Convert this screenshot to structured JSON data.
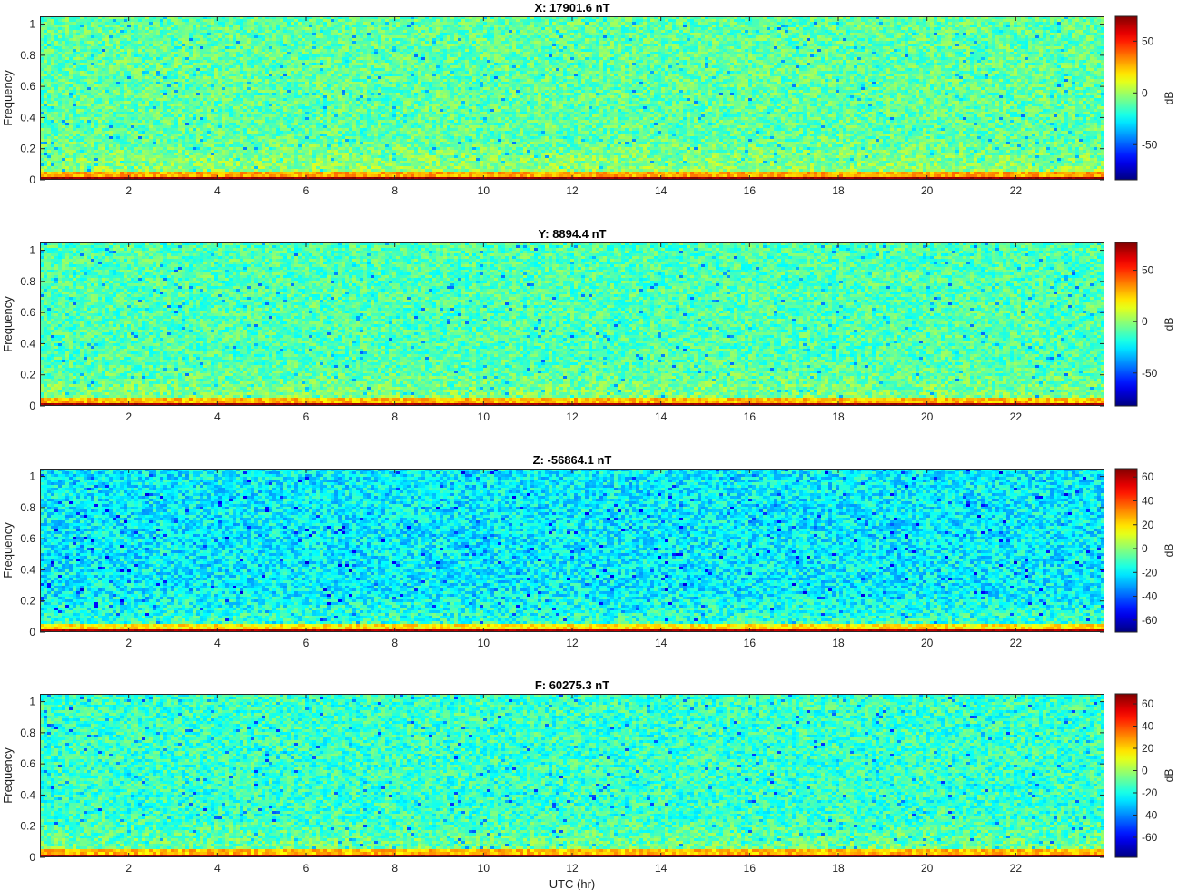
{
  "chart_data": [
    {
      "type": "heatmap",
      "title": "X: 17901.6 nT",
      "ylabel": "Frequency",
      "xlabel": "",
      "xlim": [
        0,
        24
      ],
      "ylim": [
        0,
        1.05
      ],
      "xticks": [
        2,
        4,
        6,
        8,
        10,
        12,
        14,
        16,
        18,
        20,
        22
      ],
      "yticks": [
        0,
        0.2,
        0.4,
        0.6,
        0.8,
        1
      ],
      "colorbar": {
        "label": "dB",
        "range": [
          -84,
          74
        ],
        "ticks": [
          -50,
          0,
          50
        ]
      },
      "colormap": "jet",
      "noise_floor_db": -10,
      "low_frequency_band_db": 74
    },
    {
      "type": "heatmap",
      "title": "Y: 8894.4 nT",
      "ylabel": "Frequency",
      "xlabel": "",
      "xlim": [
        0,
        24
      ],
      "ylim": [
        0,
        1.05
      ],
      "xticks": [
        2,
        4,
        6,
        8,
        10,
        12,
        14,
        16,
        18,
        20,
        22
      ],
      "yticks": [
        0,
        0.2,
        0.4,
        0.6,
        0.8,
        1
      ],
      "colorbar": {
        "label": "dB",
        "range": [
          -82,
          77
        ],
        "ticks": [
          -50,
          0,
          50
        ]
      },
      "colormap": "jet",
      "noise_floor_db": -10,
      "low_frequency_band_db": 75
    },
    {
      "type": "heatmap",
      "title": "Z: -56864.1 nT",
      "ylabel": "Frequency",
      "xlabel": "",
      "xlim": [
        0,
        24
      ],
      "ylim": [
        0,
        1.05
      ],
      "xticks": [
        2,
        4,
        6,
        8,
        10,
        12,
        14,
        16,
        18,
        20,
        22
      ],
      "yticks": [
        0,
        0.2,
        0.4,
        0.6,
        0.8,
        1
      ],
      "colorbar": {
        "label": "dB",
        "range": [
          -70,
          67
        ],
        "ticks": [
          -60,
          -40,
          -20,
          0,
          20,
          40,
          60
        ]
      },
      "colormap": "jet",
      "noise_floor_db": -20,
      "low_frequency_band_db": 64
    },
    {
      "type": "heatmap",
      "title": "F: 60275.3 nT",
      "ylabel": "Frequency",
      "xlabel": "UTC (hr)",
      "xlim": [
        0,
        24
      ],
      "ylim": [
        0,
        1.05
      ],
      "xticks": [
        2,
        4,
        6,
        8,
        10,
        12,
        14,
        16,
        18,
        20,
        22
      ],
      "yticks": [
        0,
        0.2,
        0.4,
        0.6,
        0.8,
        1
      ],
      "colorbar": {
        "label": "dB",
        "range": [
          -78,
          69
        ],
        "ticks": [
          -60,
          -40,
          -20,
          0,
          20,
          40,
          60
        ]
      },
      "colormap": "jet",
      "noise_floor_db": -15,
      "low_frequency_band_db": 66
    }
  ]
}
